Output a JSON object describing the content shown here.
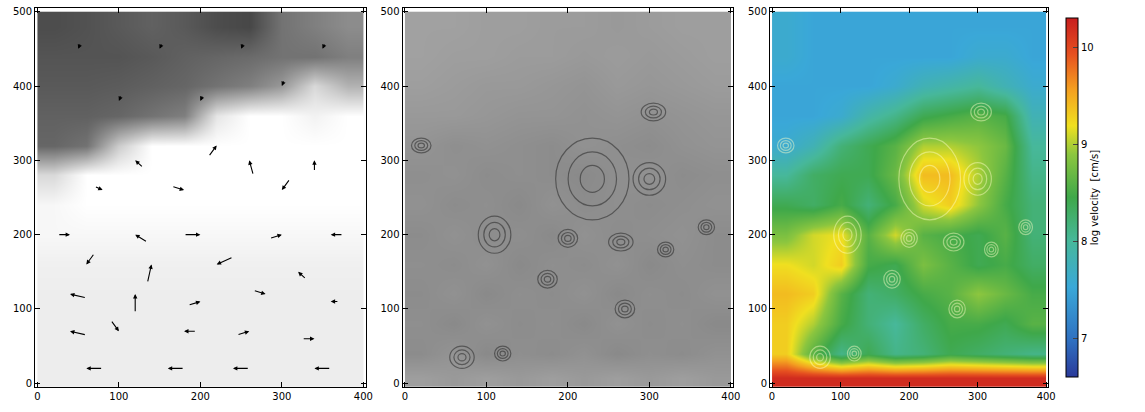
{
  "chart_data": [
    {
      "type": "heatmap",
      "x": [
        20,
        60,
        100,
        140,
        180,
        220,
        260,
        300,
        340,
        380
      ],
      "y": [
        8,
        40,
        80,
        120,
        160,
        200,
        240,
        280,
        320,
        360,
        400,
        440,
        480
      ],
      "cells": [
        [
          0.93,
          0.93,
          0.93,
          0.93,
          0.93,
          0.93,
          0.93,
          0.93,
          0.93,
          0.93
        ],
        [
          0.93,
          0.93,
          0.93,
          0.93,
          0.93,
          0.93,
          0.93,
          0.93,
          0.93,
          0.93
        ],
        [
          0.93,
          0.93,
          0.93,
          0.93,
          0.93,
          0.93,
          0.93,
          0.93,
          0.93,
          0.93
        ],
        [
          0.93,
          0.93,
          0.93,
          0.93,
          0.93,
          0.93,
          0.93,
          0.93,
          0.93,
          0.93
        ],
        [
          0.94,
          0.94,
          0.94,
          0.94,
          0.94,
          0.94,
          0.94,
          0.94,
          0.94,
          0.94
        ],
        [
          0.97,
          0.97,
          0.97,
          0.97,
          0.97,
          0.97,
          0.97,
          0.97,
          0.97,
          0.97
        ],
        [
          0.97,
          1,
          1,
          1,
          1,
          1,
          1,
          1,
          1,
          1
        ],
        [
          0.85,
          1,
          1,
          1,
          1,
          1,
          1,
          1,
          1,
          1
        ],
        [
          0.4,
          0.45,
          0.8,
          1,
          1,
          1,
          1,
          1,
          1,
          1
        ],
        [
          0.38,
          0.38,
          0.4,
          0.45,
          0.5,
          0.9,
          1,
          1,
          0.95,
          1
        ],
        [
          0.35,
          0.35,
          0.36,
          0.38,
          0.4,
          0.45,
          0.5,
          0.6,
          0.85,
          0.7
        ],
        [
          0.33,
          0.33,
          0.33,
          0.35,
          0.38,
          0.4,
          0.42,
          0.45,
          0.45,
          0.5
        ],
        [
          0.3,
          0.32,
          0.35,
          0.38,
          0.35,
          0.3,
          0.28,
          0.45,
          0.5,
          0.55
        ]
      ],
      "zlim": [
        0,
        1
      ],
      "vectors": [
        {
          "x": 50,
          "y": 450,
          "u": -3,
          "v": -8
        },
        {
          "x": 150,
          "y": 450,
          "u": -3,
          "v": -8
        },
        {
          "x": 250,
          "y": 450,
          "u": -3,
          "v": -8
        },
        {
          "x": 350,
          "y": 450,
          "u": -3,
          "v": -8
        },
        {
          "x": 100,
          "y": 380,
          "u": -3,
          "v": -8
        },
        {
          "x": 200,
          "y": 380,
          "u": -3,
          "v": -8
        },
        {
          "x": 300,
          "y": 400,
          "u": -3,
          "v": -8
        },
        {
          "x": 220,
          "y": 320,
          "u": 10,
          "v": 15
        },
        {
          "x": 260,
          "y": 300,
          "u": -5,
          "v": 20
        },
        {
          "x": 180,
          "y": 260,
          "u": 15,
          "v": -5
        },
        {
          "x": 300,
          "y": 260,
          "u": -10,
          "v": -15
        },
        {
          "x": 340,
          "y": 300,
          "u": 0,
          "v": 15
        },
        {
          "x": 120,
          "y": 300,
          "u": -10,
          "v": 10
        },
        {
          "x": 80,
          "y": 260,
          "u": 10,
          "v": -5
        },
        {
          "x": 40,
          "y": 200,
          "u": 15,
          "v": 0
        },
        {
          "x": 120,
          "y": 200,
          "u": -15,
          "v": 10
        },
        {
          "x": 200,
          "y": 200,
          "u": 20,
          "v": 0
        },
        {
          "x": 300,
          "y": 200,
          "u": 15,
          "v": 5
        },
        {
          "x": 360,
          "y": 200,
          "u": -15,
          "v": 0
        },
        {
          "x": 60,
          "y": 160,
          "u": -10,
          "v": -15
        },
        {
          "x": 140,
          "y": 160,
          "u": 5,
          "v": 25
        },
        {
          "x": 220,
          "y": 160,
          "u": -20,
          "v": -10
        },
        {
          "x": 320,
          "y": 150,
          "u": -10,
          "v": 10
        },
        {
          "x": 40,
          "y": 120,
          "u": -20,
          "v": 5
        },
        {
          "x": 120,
          "y": 120,
          "u": 0,
          "v": 25
        },
        {
          "x": 200,
          "y": 110,
          "u": 15,
          "v": 5
        },
        {
          "x": 280,
          "y": 120,
          "u": 15,
          "v": -5
        },
        {
          "x": 360,
          "y": 110,
          "u": -10,
          "v": 0
        },
        {
          "x": 40,
          "y": 70,
          "u": -20,
          "v": 5
        },
        {
          "x": 100,
          "y": 70,
          "u": 10,
          "v": -15
        },
        {
          "x": 180,
          "y": 70,
          "u": -15,
          "v": 0
        },
        {
          "x": 260,
          "y": 70,
          "u": 15,
          "v": 5
        },
        {
          "x": 340,
          "y": 60,
          "u": 15,
          "v": 0
        },
        {
          "x": 60,
          "y": 20,
          "u": -20,
          "v": 0
        },
        {
          "x": 160,
          "y": 20,
          "u": -20,
          "v": 0
        },
        {
          "x": 240,
          "y": 20,
          "u": -20,
          "v": 0
        },
        {
          "x": 340,
          "y": 20,
          "u": -20,
          "v": 0
        }
      ],
      "xlim": [
        -3,
        403
      ],
      "ylim": [
        -5,
        505
      ],
      "xticks": [
        0,
        100,
        200,
        300,
        400
      ],
      "yticks": [
        0,
        100,
        200,
        300,
        400,
        500
      ]
    },
    {
      "type": "heatmap",
      "x": [
        20,
        60,
        100,
        140,
        180,
        220,
        260,
        300,
        340,
        380
      ],
      "y": [
        8,
        40,
        80,
        120,
        160,
        200,
        240,
        280,
        320,
        360,
        400,
        440,
        480
      ],
      "cells": [
        [
          0.62,
          0.6,
          0.62,
          0.6,
          0.62,
          0.6,
          0.62,
          0.6,
          0.62,
          0.6
        ],
        [
          0.55,
          0.58,
          0.54,
          0.56,
          0.55,
          0.57,
          0.54,
          0.56,
          0.55,
          0.57
        ],
        [
          0.56,
          0.54,
          0.57,
          0.55,
          0.56,
          0.54,
          0.57,
          0.55,
          0.56,
          0.54
        ],
        [
          0.55,
          0.57,
          0.54,
          0.56,
          0.55,
          0.57,
          0.54,
          0.56,
          0.55,
          0.57
        ],
        [
          0.56,
          0.55,
          0.57,
          0.54,
          0.56,
          0.55,
          0.57,
          0.54,
          0.56,
          0.55
        ],
        [
          0.55,
          0.57,
          0.55,
          0.56,
          0.54,
          0.57,
          0.55,
          0.56,
          0.57,
          0.55
        ],
        [
          0.57,
          0.55,
          0.56,
          0.54,
          0.57,
          0.55,
          0.56,
          0.55,
          0.56,
          0.57
        ],
        [
          0.56,
          0.57,
          0.55,
          0.56,
          0.55,
          0.54,
          0.56,
          0.57,
          0.55,
          0.56
        ],
        [
          0.58,
          0.56,
          0.57,
          0.56,
          0.55,
          0.57,
          0.56,
          0.55,
          0.57,
          0.58
        ],
        [
          0.6,
          0.6,
          0.59,
          0.58,
          0.58,
          0.57,
          0.58,
          0.57,
          0.58,
          0.59
        ],
        [
          0.62,
          0.61,
          0.6,
          0.6,
          0.59,
          0.58,
          0.6,
          0.59,
          0.6,
          0.61
        ],
        [
          0.63,
          0.62,
          0.62,
          0.61,
          0.61,
          0.6,
          0.61,
          0.6,
          0.61,
          0.62
        ],
        [
          0.63,
          0.63,
          0.62,
          0.62,
          0.61,
          0.61,
          0.6,
          0.61,
          0.62,
          0.62
        ]
      ],
      "zlim": [
        0,
        1
      ],
      "eddies": [
        {
          "x": 230,
          "y": 275,
          "rx": 45,
          "ry": 55
        },
        {
          "x": 305,
          "y": 365,
          "rx": 15,
          "ry": 12
        },
        {
          "x": 300,
          "y": 275,
          "rx": 20,
          "ry": 22
        },
        {
          "x": 265,
          "y": 190,
          "rx": 15,
          "ry": 12
        },
        {
          "x": 200,
          "y": 195,
          "rx": 12,
          "ry": 12
        },
        {
          "x": 110,
          "y": 200,
          "rx": 20,
          "ry": 25
        },
        {
          "x": 175,
          "y": 140,
          "rx": 12,
          "ry": 12
        },
        {
          "x": 70,
          "y": 35,
          "rx": 15,
          "ry": 15
        },
        {
          "x": 270,
          "y": 100,
          "rx": 12,
          "ry": 12
        },
        {
          "x": 320,
          "y": 180,
          "rx": 10,
          "ry": 10
        },
        {
          "x": 20,
          "y": 320,
          "rx": 12,
          "ry": 10
        },
        {
          "x": 370,
          "y": 210,
          "rx": 10,
          "ry": 10
        },
        {
          "x": 120,
          "y": 40,
          "rx": 10,
          "ry": 10
        }
      ],
      "xlim": [
        -3,
        403
      ],
      "ylim": [
        -5,
        505
      ],
      "xticks": [
        0,
        100,
        200,
        300,
        400
      ],
      "yticks": [
        0,
        100,
        200,
        300,
        400,
        500
      ]
    },
    {
      "type": "heatmap",
      "x": [
        20,
        60,
        100,
        140,
        180,
        220,
        260,
        300,
        340,
        380
      ],
      "y": [
        8,
        40,
        80,
        120,
        160,
        200,
        240,
        280,
        320,
        360,
        400,
        440,
        480
      ],
      "cells": [
        [
          10.2,
          10.2,
          10.2,
          10.2,
          10.2,
          10.2,
          10.2,
          10.2,
          10.2,
          10.2
        ],
        [
          9.3,
          8.6,
          8.1,
          8.4,
          8.1,
          8.2,
          8.4,
          8.3,
          8.2,
          8.1
        ],
        [
          9.3,
          9.0,
          8.5,
          8.2,
          8.0,
          8.3,
          8.5,
          8.5,
          8.4,
          8.6
        ],
        [
          9.4,
          9.3,
          8.6,
          8.2,
          8.3,
          8.5,
          8.6,
          8.9,
          8.7,
          8.5
        ],
        [
          9.2,
          9.1,
          9.3,
          8.5,
          8.4,
          8.8,
          8.6,
          8.4,
          8.5,
          8.3
        ],
        [
          8.8,
          9.1,
          9.2,
          8.6,
          9.1,
          8.6,
          8.5,
          8.4,
          8.6,
          8.2
        ],
        [
          8.4,
          8.3,
          8.5,
          8.2,
          8.5,
          9.1,
          9.3,
          8.9,
          8.5,
          8.2
        ],
        [
          8.0,
          8.3,
          8.4,
          8.4,
          8.7,
          9.4,
          9.4,
          9.0,
          8.6,
          8.1
        ],
        [
          7.6,
          7.8,
          8.2,
          8.4,
          8.6,
          9.0,
          9.0,
          8.9,
          8.7,
          8.0
        ],
        [
          7.5,
          7.5,
          7.6,
          7.9,
          8.1,
          8.4,
          8.5,
          8.6,
          8.5,
          7.8
        ],
        [
          7.5,
          7.5,
          7.5,
          7.5,
          7.6,
          7.8,
          7.9,
          8.0,
          7.8,
          7.6
        ],
        [
          7.6,
          7.5,
          7.5,
          7.5,
          7.5,
          7.5,
          7.5,
          7.6,
          7.6,
          7.5
        ],
        [
          7.6,
          7.5,
          7.5,
          7.5,
          7.5,
          7.5,
          7.5,
          7.5,
          7.5,
          7.5
        ]
      ],
      "zlim": [
        6.6,
        10.3
      ],
      "colorbar": {
        "title": "log velocity  [cm/s]",
        "ticks": [
          7,
          8,
          9,
          10
        ]
      },
      "eddies": [
        {
          "x": 230,
          "y": 275,
          "rx": 45,
          "ry": 55
        },
        {
          "x": 305,
          "y": 365,
          "rx": 15,
          "ry": 12
        },
        {
          "x": 300,
          "y": 275,
          "rx": 20,
          "ry": 22
        },
        {
          "x": 265,
          "y": 190,
          "rx": 15,
          "ry": 12
        },
        {
          "x": 200,
          "y": 195,
          "rx": 12,
          "ry": 12
        },
        {
          "x": 110,
          "y": 200,
          "rx": 20,
          "ry": 25
        },
        {
          "x": 175,
          "y": 140,
          "rx": 12,
          "ry": 12
        },
        {
          "x": 70,
          "y": 35,
          "rx": 15,
          "ry": 15
        },
        {
          "x": 270,
          "y": 100,
          "rx": 12,
          "ry": 12
        },
        {
          "x": 320,
          "y": 180,
          "rx": 10,
          "ry": 10
        },
        {
          "x": 20,
          "y": 320,
          "rx": 12,
          "ry": 10
        },
        {
          "x": 370,
          "y": 210,
          "rx": 10,
          "ry": 10
        },
        {
          "x": 120,
          "y": 40,
          "rx": 10,
          "ry": 10
        }
      ],
      "xlim": [
        -3,
        403
      ],
      "ylim": [
        -5,
        505
      ],
      "xticks": [
        0,
        100,
        200,
        300,
        400
      ],
      "yticks": [
        0,
        100,
        200,
        300,
        400,
        500
      ]
    }
  ]
}
